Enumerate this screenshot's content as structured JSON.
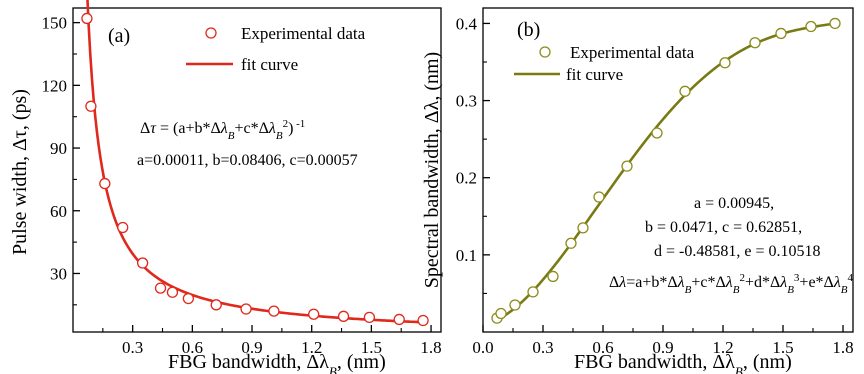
{
  "chart_data": [
    {
      "type": "scatter",
      "panel_label": "(a)",
      "xlabel_prefix": "FBG bandwidth, Δλ",
      "xlabel_sub": "B",
      "xlabel_suffix": ", (nm)",
      "ylabel": "Pulse width, Δτ, (ps)",
      "xlim": [
        0.0,
        1.85
      ],
      "ylim": [
        2,
        157
      ],
      "xticks": [
        "0.3",
        "0.6",
        "0.9",
        "1.2",
        "1.5",
        "1.8"
      ],
      "yticks": [
        "30",
        "60",
        "90",
        "120",
        "150"
      ],
      "series": [
        {
          "name": "Experimental data",
          "style": "markers",
          "x": [
            0.07,
            0.09,
            0.16,
            0.25,
            0.35,
            0.44,
            0.5,
            0.58,
            0.72,
            0.87,
            1.01,
            1.21,
            1.36,
            1.49,
            1.64,
            1.76
          ],
          "y": [
            152,
            110,
            73,
            52,
            35,
            23,
            21,
            18,
            15,
            13,
            12,
            10.5,
            9.5,
            9,
            8,
            7.5
          ]
        },
        {
          "name": "fit curve",
          "style": "line",
          "model": "inverse_quadratic",
          "a": 0.00011,
          "b": 0.08406,
          "c": 0.00057
        }
      ],
      "equation": "Δτ = (a+b*Δλ_B+c*Δλ_B^2)^-1",
      "params": "a=0.00011, b=0.08406, c=0.00057",
      "colors": {
        "data": "#e0281c",
        "fit": "#e0281c"
      }
    },
    {
      "type": "scatter",
      "panel_label": "(b)",
      "xlabel_prefix": "FBG bandwidth, Δλ",
      "xlabel_sub": "B",
      "xlabel_suffix": ", (nm)",
      "ylabel": "Spectral bandwidth, Δλ, (nm)",
      "xlim": [
        0.0,
        1.85
      ],
      "ylim": [
        0.0,
        0.42
      ],
      "xticks": [
        "0.0",
        "0.3",
        "0.6",
        "0.9",
        "1.2",
        "1.5",
        "1.8"
      ],
      "yticks": [
        "0.1",
        "0.2",
        "0.3",
        "0.4"
      ],
      "series": [
        {
          "name": "Experimental data",
          "style": "markers",
          "x": [
            0.07,
            0.09,
            0.16,
            0.25,
            0.35,
            0.44,
            0.5,
            0.58,
            0.72,
            0.87,
            1.01,
            1.21,
            1.36,
            1.49,
            1.64,
            1.76
          ],
          "y": [
            0.018,
            0.024,
            0.035,
            0.052,
            0.072,
            0.115,
            0.135,
            0.175,
            0.215,
            0.258,
            0.312,
            0.349,
            0.375,
            0.387,
            0.396,
            0.4
          ]
        },
        {
          "name": "fit curve",
          "style": "line",
          "model": "quartic",
          "a": 0.00945,
          "b": 0.0471,
          "c": 0.62851,
          "d": -0.48581,
          "e": 0.10518
        }
      ],
      "params_lines": [
        "a = 0.00945,",
        "b = 0.0471, c = 0.62851,",
        "d = -0.48581, e = 0.10518"
      ],
      "equation": "Δλ=a+b*Δλ_B+c*Δλ_B^2+d*Δλ_B^3+e*Δλ_B^4",
      "colors": {
        "data": "#8c8c1c",
        "fit": "#7a7a14"
      }
    }
  ]
}
